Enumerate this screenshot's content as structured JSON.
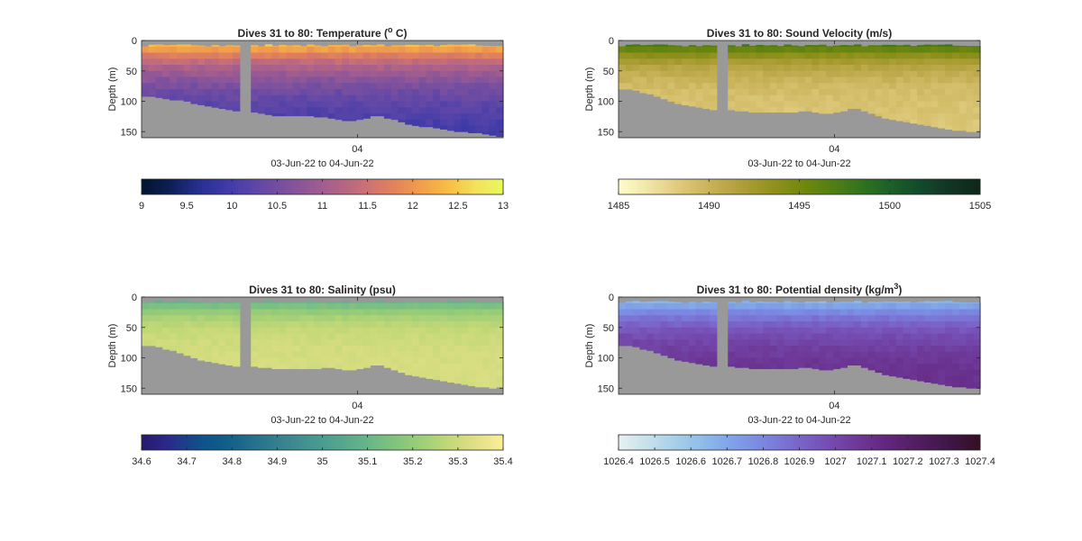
{
  "figure": {
    "background": "#ffffff"
  },
  "chart_data": [
    {
      "type": "heatmap",
      "title": "Dives 31 to 80: Temperature (",
      "title_sup": "o",
      "title_tail": " C)",
      "ylabel": "Depth (m)",
      "xlabel": "03-Jun-22 to 04-Jun-22",
      "x_ticks": [
        "04"
      ],
      "y_ticks": [
        "0",
        "50",
        "100",
        "150"
      ],
      "ylim": [
        0,
        160
      ],
      "y_reversed": true,
      "colormap": "thermal",
      "color_ticks": [
        "9",
        "9.5",
        "10",
        "10.5",
        "11",
        "11.5",
        "12",
        "12.5",
        "13"
      ],
      "clim": [
        9,
        13
      ],
      "nan_color": "#999999",
      "dives": {
        "first": 31,
        "last": 80,
        "gap_after": 44,
        "gap_width": 1.6,
        "bottom_depth_m": [
          92,
          92,
          94,
          96,
          98,
          98,
          100,
          104,
          106,
          108,
          110,
          112,
          114,
          116,
          118,
          120,
          122,
          124,
          124,
          124,
          124,
          124,
          124,
          126,
          126,
          128,
          130,
          132,
          132,
          130,
          128,
          124,
          124,
          128,
          130,
          134,
          138,
          140,
          142,
          142,
          144,
          146,
          148,
          150,
          150,
          152,
          152,
          154,
          156,
          158
        ],
        "surface_value": 12.8,
        "deep_value": 9.8,
        "mix_scale_m": 55
      }
    },
    {
      "type": "heatmap",
      "title": "Dives 31 to 80: Sound Velocity (m/s)",
      "ylabel": "Depth (m)",
      "xlabel": "03-Jun-22 to 04-Jun-22",
      "x_ticks": [
        "04"
      ],
      "y_ticks": [
        "0",
        "50",
        "100",
        "150"
      ],
      "ylim": [
        0,
        160
      ],
      "y_reversed": true,
      "colormap": "speed",
      "color_ticks": [
        "1485",
        "1490",
        "1495",
        "1500",
        "1505"
      ],
      "clim": [
        1485,
        1505
      ],
      "nan_color": "#999999",
      "dives": {
        "first": 31,
        "last": 80,
        "gap_after": 44,
        "gap_width": 1.6,
        "bottom_depth_m": [
          80,
          80,
          82,
          86,
          88,
          92,
          96,
          100,
          104,
          106,
          108,
          110,
          112,
          114,
          114,
          116,
          116,
          118,
          118,
          118,
          118,
          118,
          118,
          118,
          116,
          116,
          118,
          120,
          120,
          118,
          116,
          112,
          112,
          116,
          120,
          124,
          128,
          130,
          132,
          134,
          136,
          138,
          140,
          142,
          144,
          146,
          148,
          148,
          150,
          150
        ],
        "surface_value": 1500.5,
        "deep_value": 1488.5,
        "mix_scale_m": 30
      }
    },
    {
      "type": "heatmap",
      "title": "Dives 31 to 80: Salinity (psu)",
      "ylabel": "Depth (m)",
      "xlabel": "03-Jun-22 to 04-Jun-22",
      "x_ticks": [
        "04"
      ],
      "y_ticks": [
        "0",
        "50",
        "100",
        "150"
      ],
      "ylim": [
        0,
        160
      ],
      "y_reversed": true,
      "colormap": "haline",
      "color_ticks": [
        "34.6",
        "34.7",
        "34.8",
        "34.9",
        "35",
        "35.1",
        "35.2",
        "35.3",
        "35.4"
      ],
      "clim": [
        34.6,
        35.4
      ],
      "nan_color": "#999999",
      "dives": {
        "first": 31,
        "last": 80,
        "gap_after": 44,
        "gap_width": 1.6,
        "bottom_depth_m": [
          80,
          80,
          82,
          86,
          88,
          92,
          96,
          100,
          104,
          106,
          108,
          110,
          112,
          114,
          114,
          116,
          116,
          118,
          118,
          118,
          118,
          118,
          118,
          118,
          116,
          116,
          118,
          120,
          120,
          118,
          116,
          112,
          112,
          116,
          120,
          124,
          128,
          130,
          132,
          134,
          136,
          138,
          140,
          142,
          144,
          146,
          148,
          148,
          150,
          148
        ],
        "surface_value": 35.0,
        "deep_value": 35.32,
        "mix_scale_m": 25
      }
    },
    {
      "type": "heatmap",
      "title": "Dives 31 to 80: Potential density (kg/m",
      "title_sup": "3",
      "title_tail": ")",
      "ylabel": "Depth (m)",
      "xlabel": "03-Jun-22 to 04-Jun-22",
      "x_ticks": [
        "04"
      ],
      "y_ticks": [
        "0",
        "50",
        "100",
        "150"
      ],
      "ylim": [
        0,
        160
      ],
      "y_reversed": true,
      "colormap": "dense",
      "color_ticks": [
        "1026.4",
        "1026.5",
        "1026.6",
        "1026.7",
        "1026.8",
        "1026.9",
        "1027",
        "1027.1",
        "1027.2",
        "1027.3",
        "1027.4"
      ],
      "clim": [
        1026.4,
        1027.4
      ],
      "nan_color": "#999999",
      "dives": {
        "first": 31,
        "last": 80,
        "gap_after": 44,
        "gap_width": 1.6,
        "bottom_depth_m": [
          80,
          80,
          82,
          86,
          88,
          92,
          96,
          100,
          104,
          106,
          108,
          110,
          112,
          114,
          114,
          116,
          116,
          118,
          118,
          118,
          118,
          118,
          118,
          118,
          116,
          116,
          118,
          120,
          120,
          118,
          116,
          112,
          112,
          116,
          120,
          124,
          128,
          130,
          132,
          134,
          136,
          138,
          140,
          142,
          144,
          146,
          148,
          148,
          150,
          150
        ],
        "surface_value": 1026.55,
        "deep_value": 1027.12,
        "mix_scale_m": 45
      }
    }
  ]
}
